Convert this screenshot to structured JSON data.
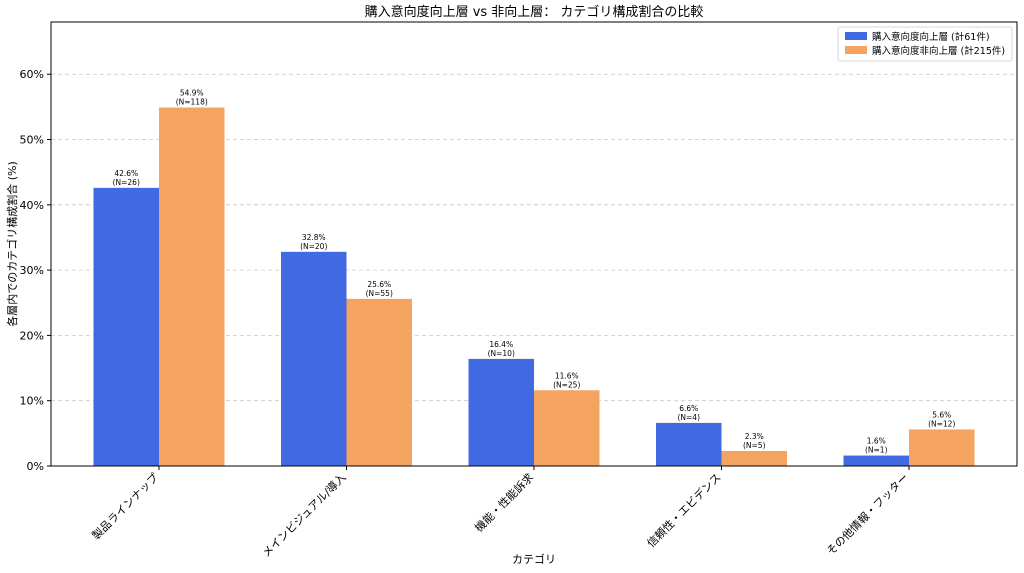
{
  "chart_data": {
    "type": "bar",
    "title": "購入意向度向上層 vs 非向上層： カテゴリ構成割合の比較",
    "xlabel": "カテゴリ",
    "ylabel": "各層内でのカテゴリ構成割合 (%)",
    "ylim": [
      0,
      68
    ],
    "yticks": [
      0,
      10,
      20,
      30,
      40,
      50,
      60
    ],
    "ytick_labels": [
      "0%",
      "10%",
      "20%",
      "30%",
      "40%",
      "50%",
      "60%"
    ],
    "grid": "y, dashed",
    "legend_position": "top-right",
    "categories": [
      "製品ラインナップ",
      "メインビジュアル/導入",
      "機能・性能訴求",
      "信頼性・エビデンス",
      "その他情報・フッター"
    ],
    "series": [
      {
        "name": "購入意向度向上層 (計61件)",
        "color": "#4169e1",
        "values": [
          42.6,
          32.8,
          16.4,
          6.6,
          1.6
        ],
        "labels": [
          "42.6%",
          "32.8%",
          "16.4%",
          "6.6%",
          "1.6%"
        ],
        "counts": [
          "(N=26)",
          "(N=20)",
          "(N=10)",
          "(N=4)",
          "(N=1)"
        ]
      },
      {
        "name": "購入意向度非向上層 (計215件)",
        "color": "#f4a460",
        "values": [
          54.9,
          25.6,
          11.6,
          2.3,
          5.6
        ],
        "labels": [
          "54.9%",
          "25.6%",
          "11.6%",
          "2.3%",
          "5.6%"
        ],
        "counts": [
          "(N=118)",
          "(N=55)",
          "(N=25)",
          "(N=5)",
          "(N=12)"
        ]
      }
    ]
  }
}
